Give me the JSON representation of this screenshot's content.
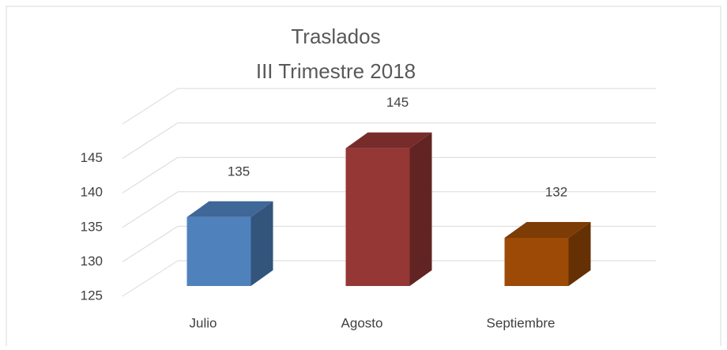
{
  "chart_data": {
    "type": "bar3d",
    "title": "Traslados",
    "subtitle": "III Trimestre 2018",
    "categories": [
      "Julio",
      "Agosto",
      "Septiembre"
    ],
    "values": [
      135,
      145,
      132
    ],
    "colors": [
      "#4f81bd",
      "#953735",
      "#9c4a06"
    ],
    "ylim": [
      125,
      150
    ],
    "yticks": [
      125,
      130,
      135,
      140,
      145
    ],
    "grid": true
  }
}
